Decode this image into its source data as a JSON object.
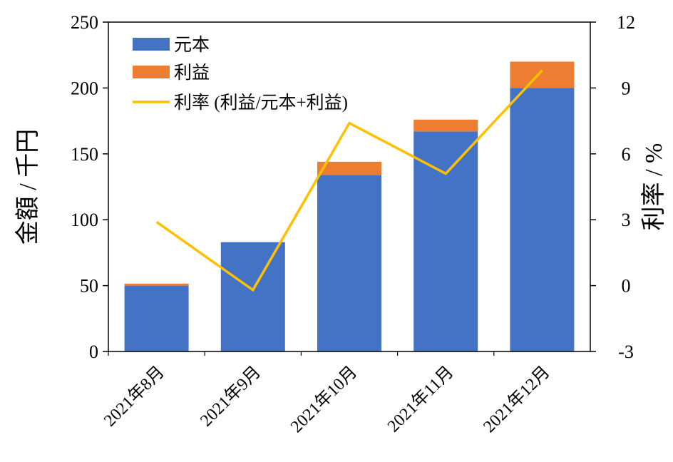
{
  "chart_data": {
    "type": "bar",
    "stacked": true,
    "categories": [
      "2021年8月",
      "2021年9月",
      "2021年10月",
      "2021年11月",
      "2021年12月"
    ],
    "series": [
      {
        "name": "元本",
        "kind": "bar",
        "axis": "left",
        "color": "#4472C4",
        "values": [
          50,
          83,
          134,
          167,
          200
        ]
      },
      {
        "name": "利益",
        "kind": "bar",
        "axis": "left",
        "color": "#ED7D31",
        "values": [
          1.5,
          0,
          10,
          9,
          20
        ]
      },
      {
        "name": "利率 (利益/元本+利益)",
        "kind": "line",
        "axis": "right",
        "color": "#FFC000",
        "values": [
          2.9,
          -0.2,
          7.4,
          5.1,
          9.8
        ]
      }
    ],
    "ylabel_left": "金額 / 千円",
    "ylabel_right": "利率 / %",
    "ylim_left": [
      0,
      250
    ],
    "yticks_left": [
      0,
      50,
      100,
      150,
      200,
      250
    ],
    "ylim_right": [
      -3,
      12
    ],
    "yticks_right": [
      -3,
      0,
      3,
      6,
      9,
      12
    ],
    "grid": false,
    "legend_position": "top-left"
  }
}
